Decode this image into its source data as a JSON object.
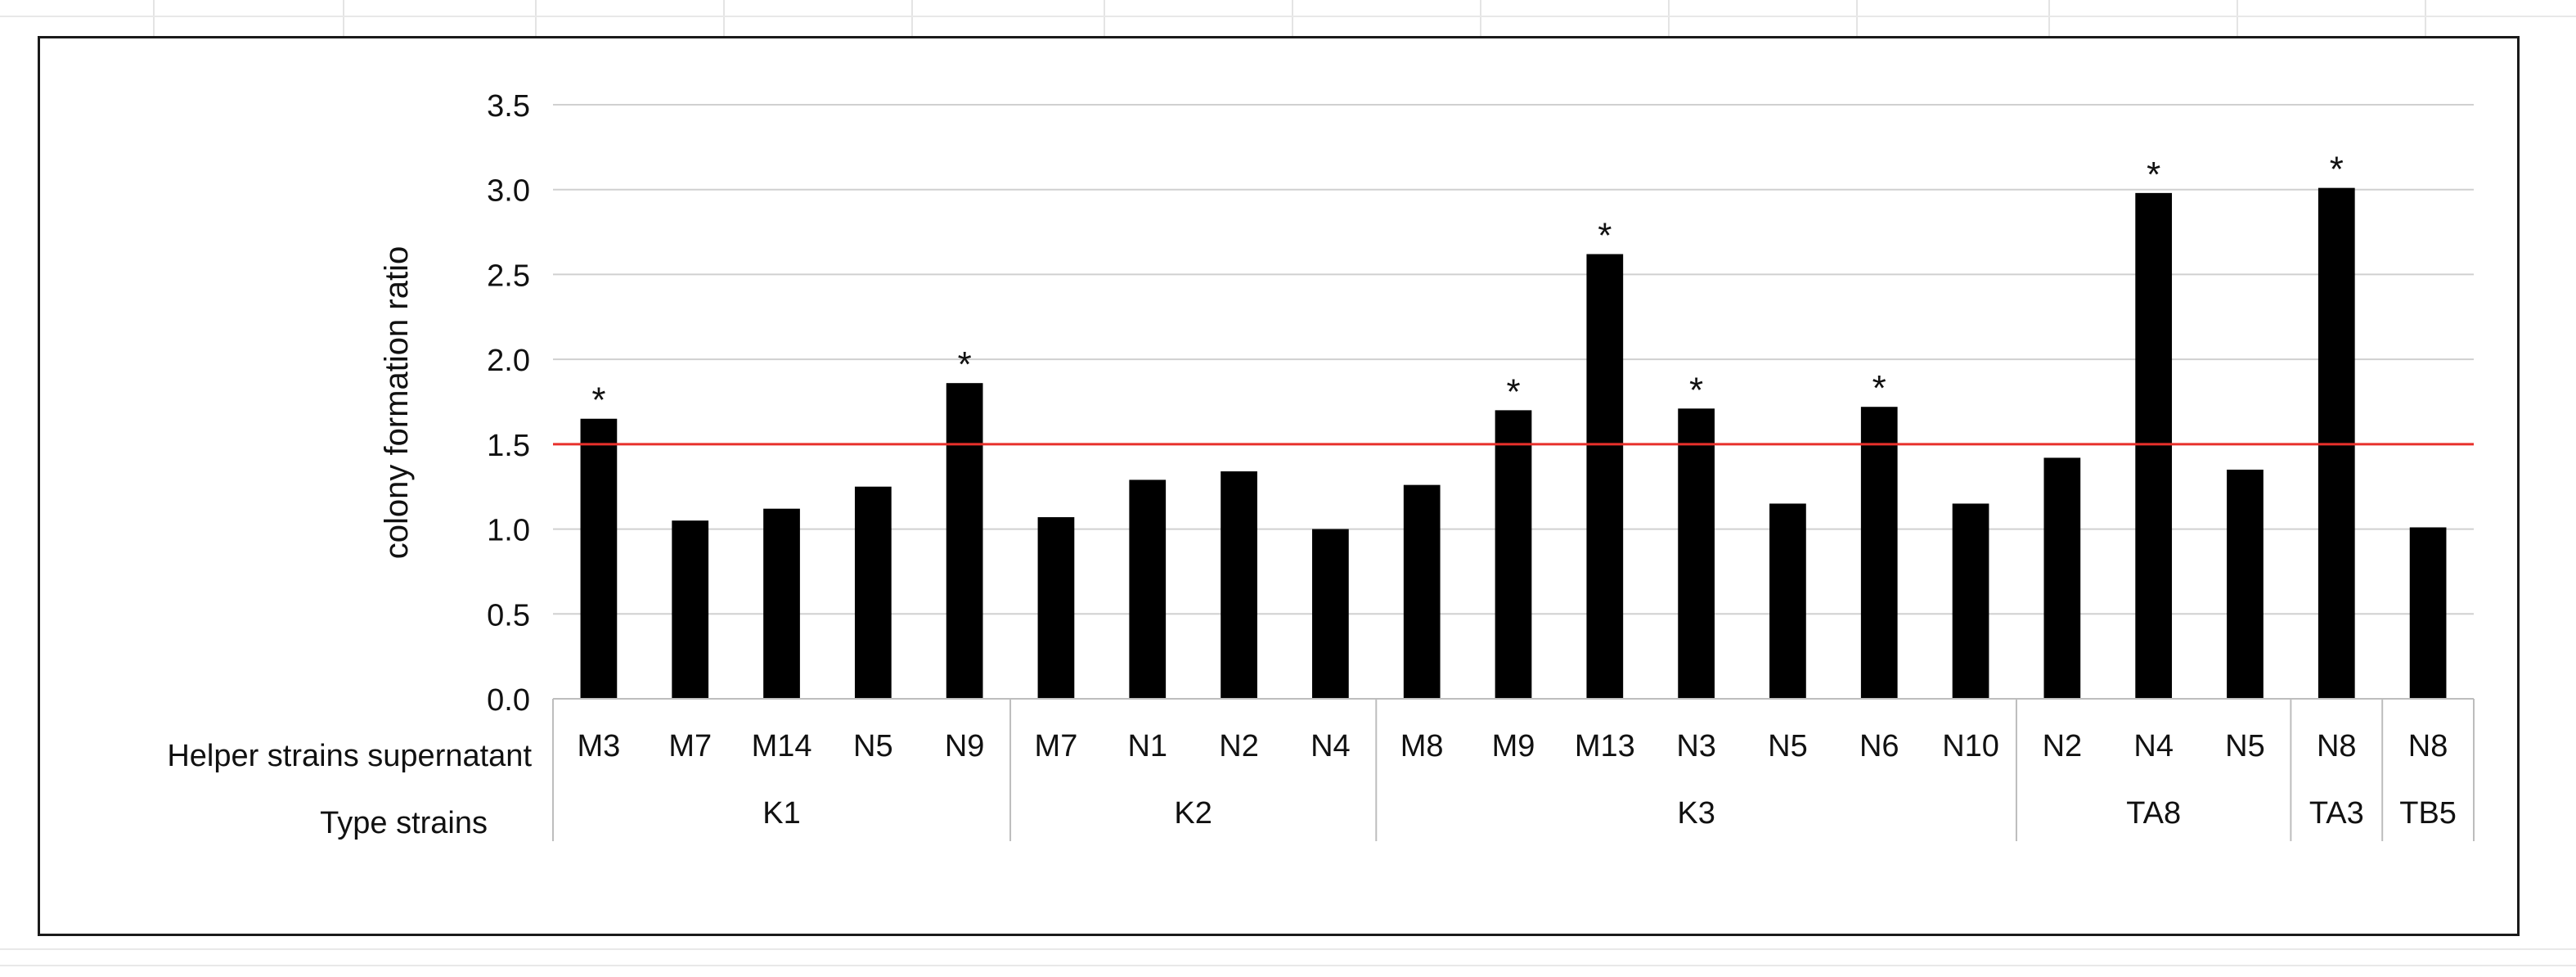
{
  "chart_data": {
    "type": "bar",
    "ylabel": "colony formation ratio",
    "ylim": [
      0,
      3.5
    ],
    "yticks": [
      "0.0",
      "0.5",
      "1.0",
      "1.5",
      "2.0",
      "2.5",
      "3.0",
      "3.5"
    ],
    "grid": true,
    "reference_line": {
      "value": 1.5,
      "color": "#e8302b"
    },
    "bar_color": "#000000",
    "significance_marker": "*",
    "row_labels": {
      "helper": "Helper strains supernatant",
      "type": "Type strains"
    },
    "groups": [
      {
        "name": "K1",
        "bars": [
          {
            "label": "M3",
            "value": 1.65,
            "sig": true
          },
          {
            "label": "M7",
            "value": 1.05,
            "sig": false
          },
          {
            "label": "M14",
            "value": 1.12,
            "sig": false
          },
          {
            "label": "N5",
            "value": 1.25,
            "sig": false
          },
          {
            "label": "N9",
            "value": 1.86,
            "sig": true
          }
        ]
      },
      {
        "name": "K2",
        "bars": [
          {
            "label": "M7",
            "value": 1.07,
            "sig": false
          },
          {
            "label": "N1",
            "value": 1.29,
            "sig": false
          },
          {
            "label": "N2",
            "value": 1.34,
            "sig": false
          },
          {
            "label": "N4",
            "value": 1.0,
            "sig": false
          }
        ]
      },
      {
        "name": "K3",
        "bars": [
          {
            "label": "M8",
            "value": 1.26,
            "sig": false
          },
          {
            "label": "M9",
            "value": 1.7,
            "sig": true
          },
          {
            "label": "M13",
            "value": 2.62,
            "sig": true
          },
          {
            "label": "N3",
            "value": 1.71,
            "sig": true
          },
          {
            "label": "N5",
            "value": 1.15,
            "sig": false
          },
          {
            "label": "N6",
            "value": 1.72,
            "sig": true
          },
          {
            "label": "N10",
            "value": 1.15,
            "sig": false
          }
        ]
      },
      {
        "name": "TA8",
        "bars": [
          {
            "label": "N2",
            "value": 1.42,
            "sig": false
          },
          {
            "label": "N4",
            "value": 2.98,
            "sig": true
          },
          {
            "label": "N5",
            "value": 1.35,
            "sig": false
          }
        ]
      },
      {
        "name": "TA3",
        "bars": [
          {
            "label": "N8",
            "value": 3.01,
            "sig": true
          }
        ]
      },
      {
        "name": "TB5",
        "bars": [
          {
            "label": "N8",
            "value": 1.01,
            "sig": false
          }
        ]
      }
    ]
  }
}
